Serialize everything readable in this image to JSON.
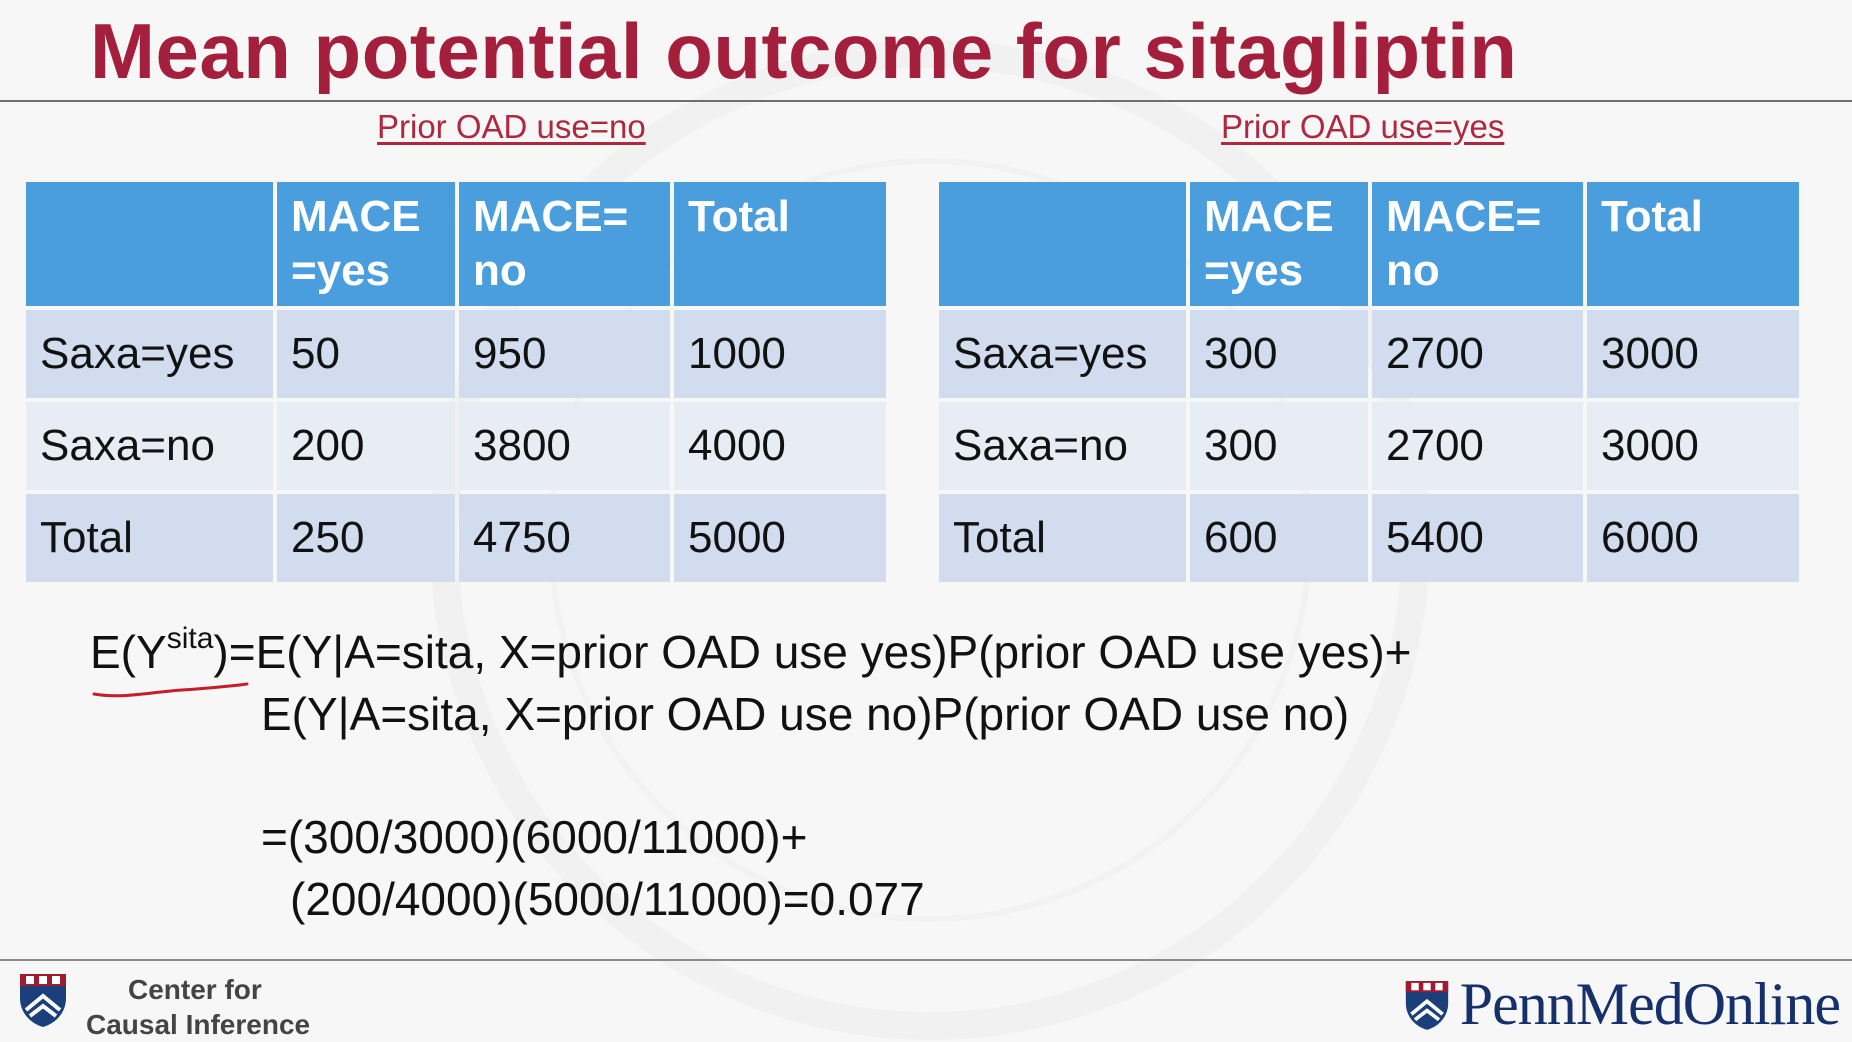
{
  "slide": {
    "title": "Mean potential outcome for sitagliptin"
  },
  "tables": [
    {
      "caption": "Prior OAD use=no",
      "headers": [
        "",
        "MACE =yes",
        "MACE= no",
        "Total"
      ],
      "rows": [
        [
          "Saxa=yes",
          "50",
          "950",
          "1000"
        ],
        [
          "Saxa=no",
          "200",
          "3800",
          "4000"
        ],
        [
          "Total",
          "250",
          "4750",
          "5000"
        ]
      ]
    },
    {
      "caption": "Prior OAD use=yes",
      "headers": [
        "",
        "MACE =yes",
        "MACE= no",
        "Total"
      ],
      "rows": [
        [
          "Saxa=yes",
          "300",
          "2700",
          "3000"
        ],
        [
          "Saxa=no",
          "300",
          "2700",
          "3000"
        ],
        [
          "Total",
          "600",
          "5400",
          "6000"
        ]
      ]
    }
  ],
  "formula": {
    "lhs_base": "E(Y",
    "lhs_sup": "sita",
    "lhs_close": ")",
    "line1_rest": "=E(Y|A=sita, X=prior OAD use yes)P(prior OAD use yes)+",
    "line2": "E(Y|A=sita, X=prior OAD use no)P(prior OAD use no)",
    "line3": "=(300/3000)(6000/11000)+",
    "line4": "(200/4000)(5000/11000)=0.077"
  },
  "footer": {
    "left_line1": "Center for",
    "left_line2": "Causal Inference",
    "right_brand": "PennMedOnline"
  },
  "colors": {
    "title": "#a41f3c",
    "header_fill": "#4a9ede",
    "row_fill_dark": "#d1ddef",
    "row_fill_light": "#e7ecf5",
    "brand": "#16306b"
  }
}
